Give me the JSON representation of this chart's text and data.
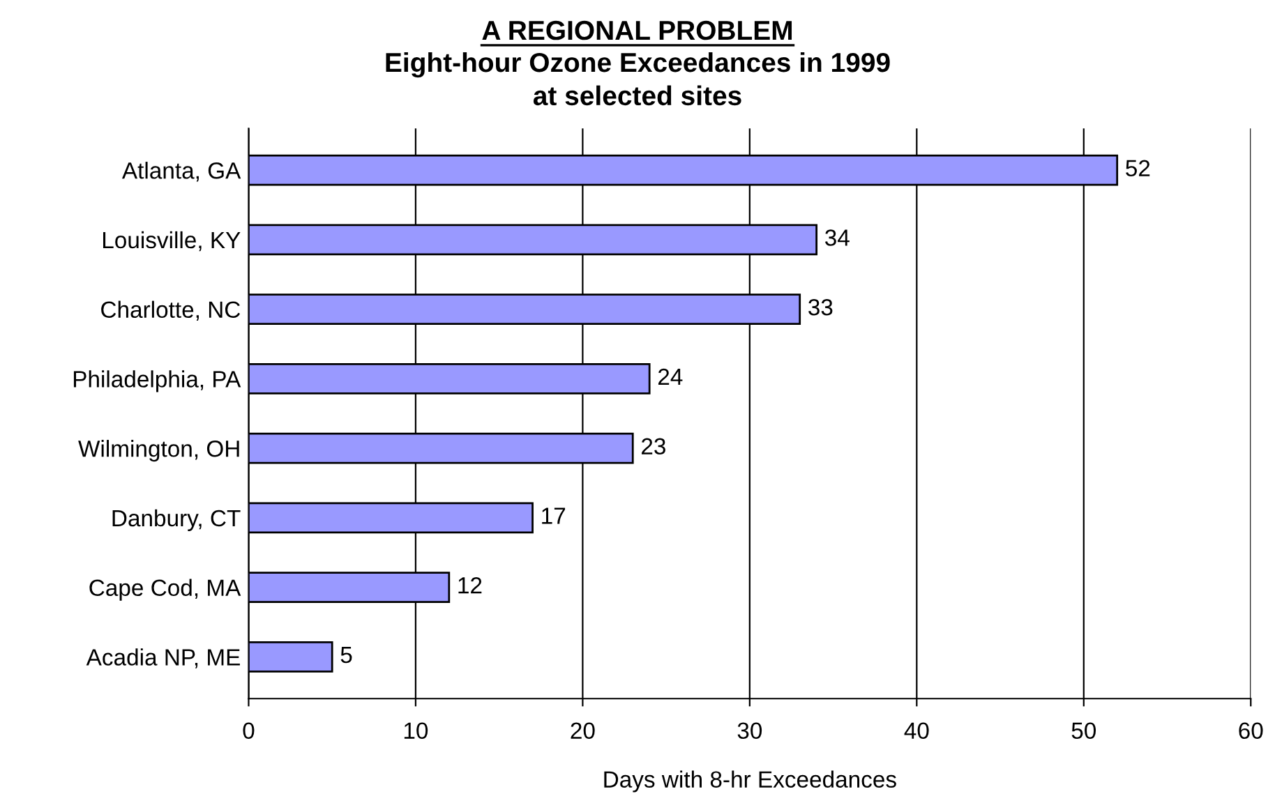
{
  "chart_data": {
    "type": "bar",
    "orientation": "horizontal",
    "title": "A REGIONAL PROBLEM",
    "subtitle": "Eight-hour Ozone Exceedances in 1999\nat selected sites",
    "xlabel": "Days with 8-hr Exceedances",
    "categories": [
      "Atlanta, GA",
      "Louisville, KY",
      "Charlotte, NC",
      "Philadelphia, PA",
      "Wilmington, OH",
      "Danbury, CT",
      "Cape Cod, MA",
      "Acadia NP, ME"
    ],
    "values": [
      52,
      34,
      33,
      24,
      23,
      17,
      12,
      5
    ],
    "color": "#9999ff",
    "xlim": [
      0,
      60
    ],
    "xticks": [
      0,
      10,
      20,
      30,
      40,
      50,
      60
    ],
    "grid": "x",
    "data_labels": true,
    "legend": false
  }
}
